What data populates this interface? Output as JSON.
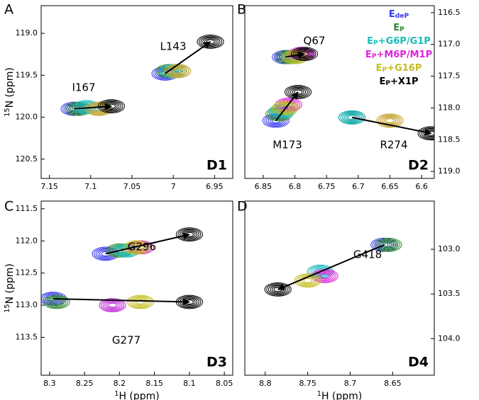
{
  "chart_data": [
    {
      "type": "contour",
      "panel": "A",
      "name": "D1",
      "categories": [
        "I167",
        "L143"
      ],
      "ylabel": [
        "15",
        "N (ppm)"
      ],
      "xlim": [
        7.16,
        6.928
      ],
      "ylim": [
        118.67,
        120.73
      ],
      "y_axis_side": "left",
      "xticks": [
        7.15,
        7.1,
        7.05,
        7.0,
        6.95
      ],
      "yticks": [
        {
          "value": 119,
          "label": "119.0"
        },
        119.5,
        {
          "value": 120,
          "label": "120.0"
        },
        120.5
      ],
      "series": [
        {
          "color": "#3535f0",
          "x": [
            7.12,
            7.01
          ],
          "y": [
            119.9,
            119.48
          ]
        },
        {
          "color": "#2e8b2e",
          "x": [
            7.115,
            7.005
          ],
          "y": [
            119.9,
            119.45
          ]
        },
        {
          "color": "#18bcbc",
          "x": [
            7.105,
            7.0
          ],
          "y": [
            119.88,
            119.45
          ]
        },
        {
          "color": "#dd22dd",
          "x": [
            7.09,
            6.995
          ],
          "y": [
            119.9,
            119.45
          ]
        },
        {
          "color": "#c4bc1c",
          "x": [
            7.09,
            6.995
          ],
          "y": [
            119.9,
            119.45
          ]
        },
        {
          "color": "#000000",
          "x": [
            7.075,
            6.955
          ],
          "y": [
            119.87,
            119.1
          ]
        }
      ]
    },
    {
      "type": "contour",
      "panel": "B",
      "name": "D2",
      "categories": [
        "Q67",
        "M173",
        "R274"
      ],
      "xlim": [
        6.879,
        6.58
      ],
      "ylim": [
        116.39,
        119.11
      ],
      "y_axis_side": "right",
      "xticks": [
        6.85,
        6.8,
        6.75,
        6.7,
        6.65,
        6.6
      ],
      "yticks": [
        116.5,
        {
          "value": 117,
          "label": "117.0"
        },
        117.5,
        {
          "value": 118,
          "label": "118.0"
        },
        118.5,
        {
          "value": 119,
          "label": "119.0"
        }
      ],
      "series": [
        {
          "name": [
            "E",
            "deP"
          ],
          "color": "#3535f0",
          "x": [
            6.815,
            6.83,
            6.71
          ],
          "y": [
            117.2,
            118.2,
            118.15
          ]
        },
        {
          "name": [
            "E",
            "P"
          ],
          "color": "#2e8b2e",
          "x": [
            6.81,
            6.825,
            6.71
          ],
          "y": [
            117.2,
            118.1,
            118.15
          ]
        },
        {
          "name": [
            "E",
            "P",
            "+G6P/G1P"
          ],
          "color": "#18bcbc",
          "x": [
            6.8,
            6.82,
            6.71
          ],
          "y": [
            117.2,
            118.05,
            118.15
          ]
        },
        {
          "name": [
            "E",
            "P",
            "+M6P/M1P"
          ],
          "color": "#dd22dd",
          "x": [
            6.79,
            6.81,
            6.65
          ],
          "y": [
            117.15,
            117.95,
            118.2
          ]
        },
        {
          "name": [
            "E",
            "P",
            "+G16P"
          ],
          "color": "#c4bc1c",
          "x": [
            6.8,
            6.815,
            6.65
          ],
          "y": [
            117.2,
            118.0,
            118.2
          ]
        },
        {
          "name": [
            "E",
            "P",
            "+X1P"
          ],
          "color": "#000000",
          "x": [
            6.785,
            6.795,
            6.585
          ],
          "y": [
            117.15,
            117.75,
            118.4
          ]
        }
      ]
    },
    {
      "type": "contour",
      "panel": "C",
      "name": "D3",
      "categories": [
        "G296",
        "G277"
      ],
      "xlabel": [
        "1",
        "H (ppm)"
      ],
      "ylabel": [
        "15",
        "N (ppm)"
      ],
      "xlim": [
        8.312,
        8.038
      ],
      "ylim": [
        111.38,
        114.09
      ],
      "y_axis_side": "left",
      "xticks": [
        8.3,
        8.25,
        8.2,
        8.15,
        8.1,
        8.05
      ],
      "yticks": [
        111.5,
        {
          "value": 112,
          "label": "112.0"
        },
        112.5,
        {
          "value": 113,
          "label": "113.0"
        },
        113.5
      ],
      "series": [
        {
          "color": "#3535f0",
          "x": [
            8.22,
            8.295
          ],
          "y": [
            112.2,
            112.9
          ]
        },
        {
          "color": "#2e8b2e",
          "x": [
            8.2,
            8.29
          ],
          "y": [
            112.15,
            112.95
          ]
        },
        {
          "color": "#18bcbc",
          "x": [
            8.19,
            8.21
          ],
          "y": [
            112.15,
            113.0
          ]
        },
        {
          "color": "#dd22dd",
          "x": [
            8.17,
            8.21
          ],
          "y": [
            112.1,
            113.0
          ]
        },
        {
          "color": "#c4bc1c",
          "x": [
            8.175,
            8.17
          ],
          "y": [
            112.1,
            112.95
          ]
        },
        {
          "color": "#000000",
          "x": [
            8.1,
            8.1
          ],
          "y": [
            111.9,
            112.95
          ]
        }
      ]
    },
    {
      "type": "contour",
      "panel": "D",
      "name": "D4",
      "categories": [
        "G418"
      ],
      "xlabel": [
        "1",
        "H (ppm)"
      ],
      "xlim": [
        8.824,
        8.601
      ],
      "ylim": [
        102.46,
        104.41
      ],
      "y_axis_side": "right",
      "xticks": [
        8.8,
        8.75,
        8.7,
        8.65
      ],
      "yticks": [
        {
          "value": 103,
          "label": "103.0"
        },
        103.5,
        {
          "value": 104,
          "label": "104.0"
        }
      ],
      "series": [
        {
          "color": "#3535f0",
          "x": [
            8.66
          ],
          "y": [
            102.95
          ]
        },
        {
          "color": "#2e8b2e",
          "x": [
            8.655
          ],
          "y": [
            102.95
          ]
        },
        {
          "color": "#18bcbc",
          "x": [
            8.735
          ],
          "y": [
            103.25
          ]
        },
        {
          "color": "#dd22dd",
          "x": [
            8.73
          ],
          "y": [
            103.3
          ]
        },
        {
          "color": "#c4bc1c",
          "x": [
            8.75
          ],
          "y": [
            103.35
          ]
        },
        {
          "color": "#000000",
          "x": [
            8.785
          ],
          "y": [
            103.45
          ]
        }
      ]
    }
  ]
}
